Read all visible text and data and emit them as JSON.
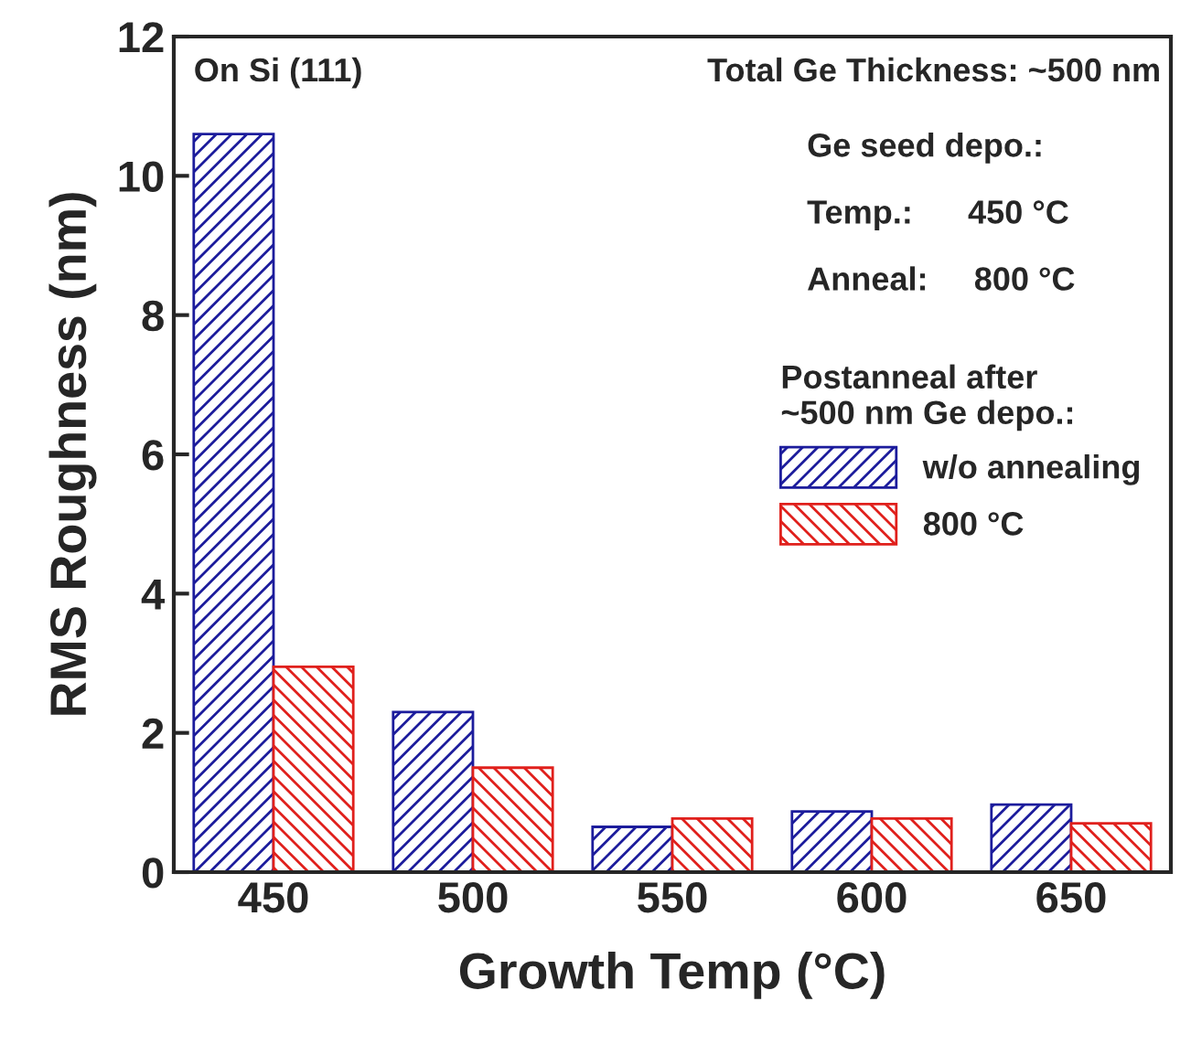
{
  "chart_data": {
    "type": "bar",
    "xlabel": "Growth Temp (°C)",
    "ylabel": "RMS Roughness (nm)",
    "categories": [
      "450",
      "500",
      "550",
      "600",
      "650"
    ],
    "series": [
      {
        "name": "w/o annealing",
        "color": "#1c1c9c",
        "values": [
          10.6,
          2.3,
          0.65,
          0.87,
          0.97
        ]
      },
      {
        "name": "800 °C",
        "color": "#e0201c",
        "values": [
          2.95,
          1.5,
          0.77,
          0.77,
          0.7
        ]
      }
    ],
    "ylim": [
      0,
      12
    ],
    "yticks": [
      0,
      2,
      4,
      6,
      8,
      10,
      12
    ],
    "grid": false,
    "legend": "right",
    "legend_title": "Postanneal after\n~500 nm Ge depo.:",
    "annotations": [
      "On Si (111)",
      "Total Ge Thickness: ~500 nm",
      "Ge seed depo.:",
      "Temp.:      450 °C",
      "Anneal:     800 °C"
    ]
  }
}
